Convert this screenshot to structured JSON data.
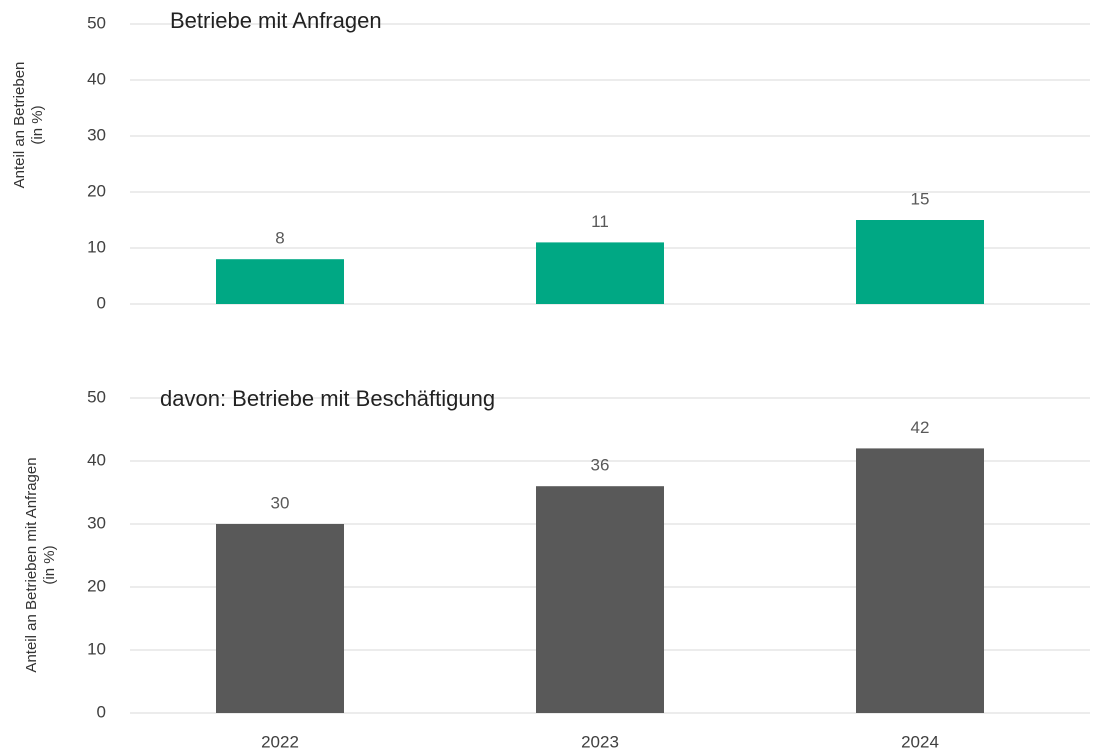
{
  "chart_data": [
    {
      "type": "bar",
      "title": "Betriebe mit Anfragen",
      "ylabel": [
        "Anteil an Betrieben",
        "(in %)"
      ],
      "values": [
        8,
        11,
        15
      ],
      "color": "#00a884",
      "ylim": [
        0,
        50
      ],
      "yticks": [
        0,
        10,
        20,
        30,
        40,
        50
      ],
      "grid": true
    },
    {
      "type": "bar",
      "title": "davon: Betriebe mit Beschäftigung",
      "ylabel": [
        "Anteil an Betrieben mit Anfragen",
        "(in %)"
      ],
      "categories": [
        "2022",
        "2023",
        "2024"
      ],
      "values": [
        30,
        36,
        42
      ],
      "color": "#595959",
      "ylim": [
        0,
        50
      ],
      "yticks": [
        0,
        10,
        20,
        30,
        40,
        50
      ],
      "grid": true
    }
  ]
}
